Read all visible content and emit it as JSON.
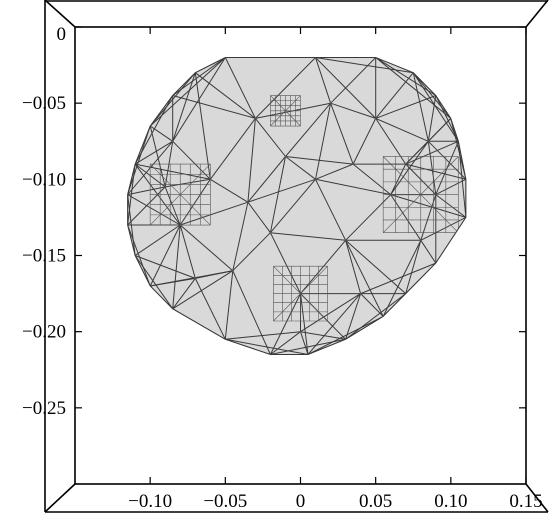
{
  "chart_data": {
    "type": "mesh",
    "title": "",
    "xlabel": "",
    "ylabel": "",
    "xlim": [
      -0.15,
      0.15
    ],
    "ylim": [
      -0.3,
      0.0
    ],
    "x_ticks": [
      {
        "value": -0.1,
        "label": "−0.10"
      },
      {
        "value": -0.05,
        "label": "−0.05"
      },
      {
        "value": 0.0,
        "label": "0"
      },
      {
        "value": 0.05,
        "label": "0.05"
      },
      {
        "value": 0.1,
        "label": "0.10"
      },
      {
        "value": 0.15,
        "label": "0.15"
      }
    ],
    "y_ticks": [
      {
        "value": 0.0,
        "label": "0"
      },
      {
        "value": -0.05,
        "label": "−0.05"
      },
      {
        "value": -0.1,
        "label": "−0.10"
      },
      {
        "value": -0.15,
        "label": "−0.15"
      },
      {
        "value": -0.2,
        "label": "−0.20"
      },
      {
        "value": -0.25,
        "label": "−0.25"
      }
    ],
    "grid": false,
    "mesh_fill": "#d9d9d9",
    "mesh_edge": "#3a3a3a",
    "boundary": [
      [
        -0.05,
        -0.02
      ],
      [
        0.05,
        -0.02
      ],
      [
        0.075,
        -0.03
      ],
      [
        0.09,
        -0.045
      ],
      [
        0.1,
        -0.06
      ],
      [
        0.105,
        -0.075
      ],
      [
        0.11,
        -0.1
      ],
      [
        0.11,
        -0.125
      ],
      [
        0.09,
        -0.155
      ],
      [
        0.07,
        -0.175
      ],
      [
        0.055,
        -0.19
      ],
      [
        0.03,
        -0.205
      ],
      [
        0.005,
        -0.215
      ],
      [
        -0.02,
        -0.215
      ],
      [
        -0.05,
        -0.205
      ],
      [
        -0.085,
        -0.185
      ],
      [
        -0.1,
        -0.17
      ],
      [
        -0.11,
        -0.15
      ],
      [
        -0.115,
        -0.13
      ],
      [
        -0.115,
        -0.11
      ],
      [
        -0.11,
        -0.09
      ],
      [
        -0.1,
        -0.065
      ],
      [
        -0.085,
        -0.045
      ],
      [
        -0.07,
        -0.03
      ]
    ],
    "interior_nodes": [
      [
        0.01,
        -0.1
      ],
      [
        0.01,
        -0.02
      ],
      [
        -0.03,
        -0.06
      ],
      [
        0.05,
        -0.06
      ],
      [
        -0.06,
        -0.1
      ],
      [
        0.06,
        -0.11
      ],
      [
        -0.02,
        -0.135
      ],
      [
        0.03,
        -0.14
      ],
      [
        -0.045,
        -0.16
      ],
      [
        0.0,
        -0.175
      ],
      [
        0.04,
        -0.175
      ],
      [
        -0.08,
        -0.13
      ],
      [
        0.08,
        -0.14
      ],
      [
        -0.085,
        -0.075
      ],
      [
        0.085,
        -0.075
      ],
      [
        0.02,
        -0.05
      ],
      [
        -0.01,
        -0.085
      ],
      [
        0.035,
        -0.09
      ],
      [
        -0.035,
        -0.115
      ],
      [
        0.0,
        -0.2
      ],
      [
        0.07,
        -0.09
      ],
      [
        -0.09,
        -0.105
      ],
      [
        0.09,
        -0.11
      ],
      [
        -0.07,
        -0.165
      ]
    ],
    "refined_regions": [
      {
        "center": [
          -0.08,
          -0.11
        ],
        "half_size": 0.02
      },
      {
        "center": [
          0.08,
          -0.11
        ],
        "half_size": 0.025
      },
      {
        "center": [
          0.0,
          -0.175
        ],
        "half_size": 0.018
      },
      {
        "center": [
          -0.01,
          -0.055
        ],
        "half_size": 0.01
      }
    ]
  }
}
